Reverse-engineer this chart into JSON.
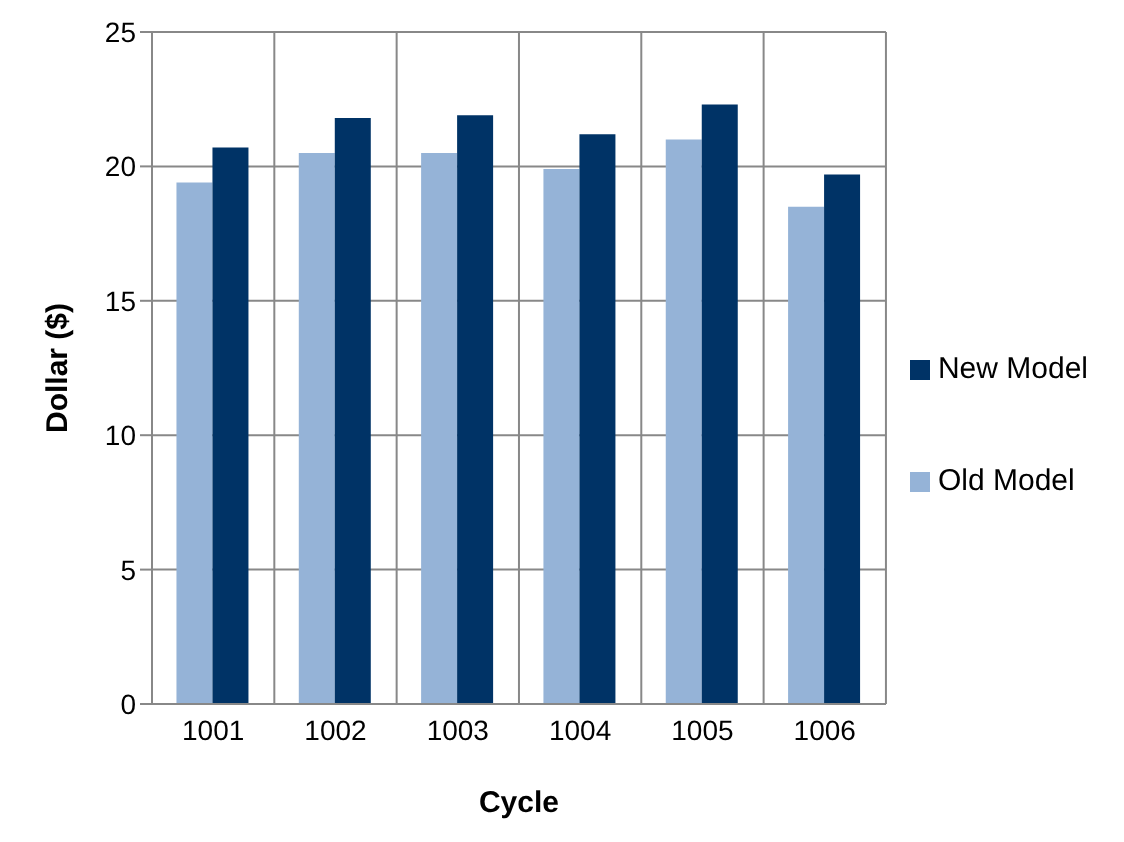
{
  "chart_data": {
    "type": "bar",
    "xlabel": "Cycle",
    "ylabel": "Dollar ($)",
    "categories": [
      "1001",
      "1002",
      "1003",
      "1004",
      "1005",
      "1006"
    ],
    "series": [
      {
        "name": "Old Model",
        "color": "#95b3d7",
        "values": [
          19.4,
          20.5,
          20.5,
          19.9,
          21.0,
          18.5
        ]
      },
      {
        "name": "New Model",
        "color": "#003366",
        "values": [
          20.7,
          21.8,
          21.9,
          21.2,
          22.3,
          19.7
        ]
      }
    ],
    "ylim": [
      0,
      25
    ],
    "yticks": [
      0,
      5,
      10,
      15,
      20,
      25
    ],
    "grid": true,
    "legend": "right"
  }
}
